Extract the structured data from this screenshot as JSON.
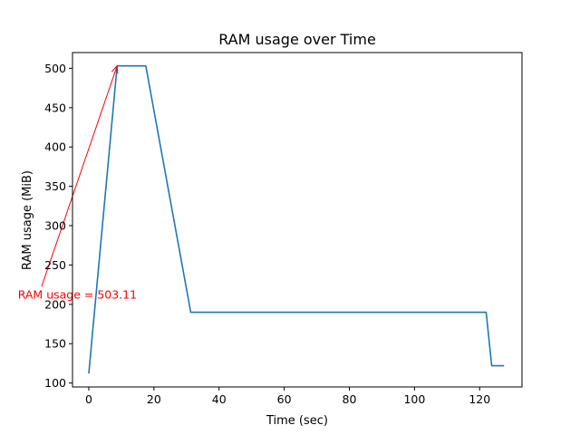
{
  "chart_data": {
    "type": "line",
    "title": "RAM usage over Time",
    "xlabel": "Time (sec)",
    "ylabel": "RAM usage (MiB)",
    "xlim": [
      -5,
      133
    ],
    "ylim": [
      95,
      520
    ],
    "xticks": [
      0,
      20,
      40,
      60,
      80,
      100,
      120
    ],
    "yticks": [
      100,
      150,
      200,
      250,
      300,
      350,
      400,
      450,
      500
    ],
    "grid": false,
    "series": [
      {
        "color": "#1f77b4",
        "x": [
          0,
          8.7,
          17.5,
          31.3,
          122,
          123.7,
          127.5
        ],
        "y": [
          112,
          503.11,
          503.11,
          190,
          190,
          122,
          122
        ]
      }
    ],
    "annotation": {
      "text": "RAM usage = 503.11",
      "color": "#ff0000",
      "point": [
        8.7,
        503.11
      ],
      "text_anchor_point": [
        -14.5,
        222.5
      ]
    }
  }
}
